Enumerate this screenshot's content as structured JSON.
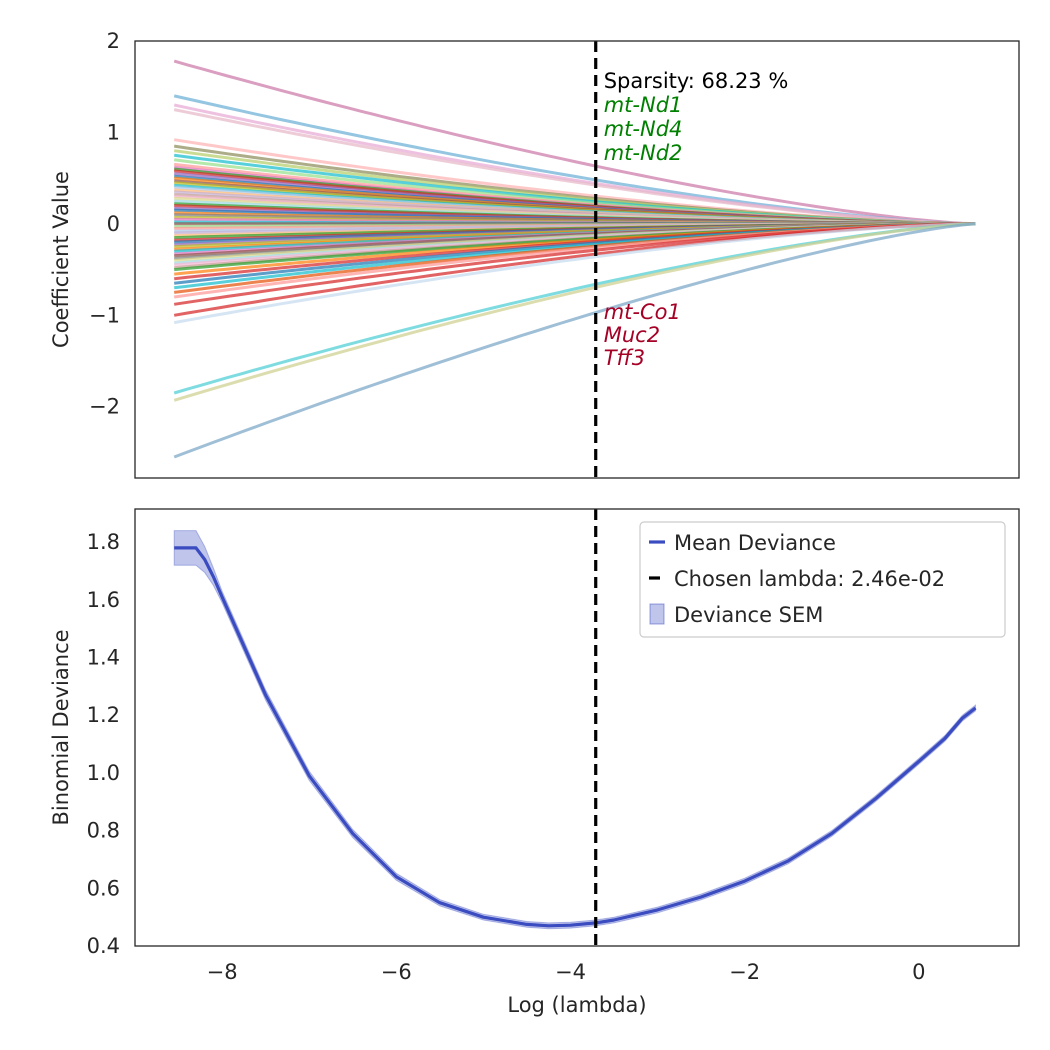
{
  "chart_data": [
    {
      "type": "line",
      "panel": "coefficient-path",
      "xlim": [
        -9.0,
        1.15
      ],
      "ylim": [
        -2.78,
        2.0
      ],
      "ylabel": "Coefficient Value",
      "yticks": [
        {
          "value": 2,
          "label": "2"
        },
        {
          "value": 1,
          "label": "1"
        },
        {
          "value": 0,
          "label": "0"
        },
        {
          "value": -1,
          "label": "−1"
        },
        {
          "value": -2,
          "label": "−2"
        }
      ],
      "grid": false,
      "chosen_log_lambda": -3.71,
      "sparsity_text": "Sparsity: 68.23 %",
      "positive_genes": {
        "color": "#008000",
        "labels": [
          "mt-Nd1",
          "mt-Nd4",
          "mt-Nd2"
        ]
      },
      "negative_genes": {
        "color": "#a50026",
        "labels": [
          "mt-Co1",
          "Muc2",
          "Tff3"
        ]
      },
      "path_x_range": [
        -8.55,
        0.65
      ],
      "series": [
        {
          "start": 1.78,
          "color": "#cc79a7"
        },
        {
          "start": 1.4,
          "color": "#6baed6"
        },
        {
          "start": 1.3,
          "color": "#e7a9d6"
        },
        {
          "start": 1.25,
          "color": "#e6b8c8"
        },
        {
          "start": 0.92,
          "color": "#ffb3b3"
        },
        {
          "start": 0.85,
          "color": "#8c8c5a"
        },
        {
          "start": 0.8,
          "color": "#b5cf6b"
        },
        {
          "start": 0.75,
          "color": "#17becf"
        },
        {
          "start": 0.7,
          "color": "#98df8a"
        },
        {
          "start": 0.65,
          "color": "#ff9896"
        },
        {
          "start": 0.62,
          "color": "#e377c2"
        },
        {
          "start": 0.6,
          "color": "#2ca02c"
        },
        {
          "start": 0.58,
          "color": "#d62728"
        },
        {
          "start": 0.55,
          "color": "#9467bd"
        },
        {
          "start": 0.52,
          "color": "#1f77b4"
        },
        {
          "start": 0.5,
          "color": "#ff7f0e"
        },
        {
          "start": 0.47,
          "color": "#8c564b"
        },
        {
          "start": 0.45,
          "color": "#bcbd22"
        },
        {
          "start": 0.42,
          "color": "#17becf"
        },
        {
          "start": 0.4,
          "color": "#aec7e8"
        },
        {
          "start": 0.37,
          "color": "#ffbb78"
        },
        {
          "start": 0.35,
          "color": "#c5b0d5"
        },
        {
          "start": 0.32,
          "color": "#c49c94"
        },
        {
          "start": 0.3,
          "color": "#f7b6d2"
        },
        {
          "start": 0.28,
          "color": "#dbdb8d"
        },
        {
          "start": 0.25,
          "color": "#9edae5"
        },
        {
          "start": 0.22,
          "color": "#2ca02c"
        },
        {
          "start": 0.2,
          "color": "#d62728"
        },
        {
          "start": 0.17,
          "color": "#9467bd"
        },
        {
          "start": 0.15,
          "color": "#1f77b4"
        },
        {
          "start": 0.12,
          "color": "#ff7f0e"
        },
        {
          "start": 0.1,
          "color": "#7f7f7f"
        },
        {
          "start": 0.07,
          "color": "#bcbd22"
        },
        {
          "start": 0.05,
          "color": "#e377c2"
        },
        {
          "start": 0.02,
          "color": "#17becf"
        },
        {
          "start": 0.0,
          "color": "#8c564b"
        },
        {
          "start": -0.03,
          "color": "#98df8a"
        },
        {
          "start": -0.05,
          "color": "#ff9896"
        },
        {
          "start": -0.08,
          "color": "#aec7e8"
        },
        {
          "start": -0.1,
          "color": "#c5b0d5"
        },
        {
          "start": -0.13,
          "color": "#ffbb78"
        },
        {
          "start": -0.15,
          "color": "#2ca02c"
        },
        {
          "start": -0.18,
          "color": "#d62728"
        },
        {
          "start": -0.2,
          "color": "#1f77b4"
        },
        {
          "start": -0.23,
          "color": "#9467bd"
        },
        {
          "start": -0.25,
          "color": "#bcbd22"
        },
        {
          "start": -0.28,
          "color": "#ff7f0e"
        },
        {
          "start": -0.3,
          "color": "#17becf"
        },
        {
          "start": -0.33,
          "color": "#e377c2"
        },
        {
          "start": -0.35,
          "color": "#8c564b"
        },
        {
          "start": -0.38,
          "color": "#7f7f7f"
        },
        {
          "start": -0.4,
          "color": "#dbdb8d"
        },
        {
          "start": -0.43,
          "color": "#9edae5"
        },
        {
          "start": -0.45,
          "color": "#f7b6d2"
        },
        {
          "start": -0.48,
          "color": "#c49c94"
        },
        {
          "start": -0.5,
          "color": "#2ca02c"
        },
        {
          "start": -0.55,
          "color": "#ff7f0e"
        },
        {
          "start": -0.6,
          "color": "#d62728"
        },
        {
          "start": -0.65,
          "color": "#1f77b4"
        },
        {
          "start": -0.7,
          "color": "#17becf"
        },
        {
          "start": -0.75,
          "color": "#e6550d"
        },
        {
          "start": -0.8,
          "color": "#ff9896"
        },
        {
          "start": -0.88,
          "color": "#d62728"
        },
        {
          "start": -1.0,
          "color": "#d62728"
        },
        {
          "start": -1.08,
          "color": "#c6dbef"
        },
        {
          "start": -1.85,
          "color": "#4ccfd6"
        },
        {
          "start": -1.93,
          "color": "#cfd08f"
        },
        {
          "start": -2.55,
          "color": "#7aa6c8"
        }
      ]
    },
    {
      "type": "line",
      "panel": "deviance",
      "xlim": [
        -9.0,
        1.15
      ],
      "ylim": [
        0.4,
        1.915
      ],
      "xlabel": "Log (lambda)",
      "ylabel": "Binomial Deviance",
      "xticks": [
        {
          "value": -8,
          "label": "−8"
        },
        {
          "value": -6,
          "label": "−6"
        },
        {
          "value": -4,
          "label": "−4"
        },
        {
          "value": -2,
          "label": "−2"
        },
        {
          "value": 0,
          "label": "0"
        }
      ],
      "yticks": [
        {
          "value": 1.8,
          "label": "1.8"
        },
        {
          "value": 1.6,
          "label": "1.6"
        },
        {
          "value": 1.4,
          "label": "1.4"
        },
        {
          "value": 1.2,
          "label": "1.2"
        },
        {
          "value": 1.0,
          "label": "1.0"
        },
        {
          "value": 0.8,
          "label": "0.8"
        },
        {
          "value": 0.6,
          "label": "0.6"
        },
        {
          "value": 0.4,
          "label": "0.4"
        }
      ],
      "grid": false,
      "chosen_log_lambda": -3.71,
      "legend_position": "top-right",
      "legend": [
        "Mean Deviance",
        "Chosen lambda: 2.46e-02",
        "Deviance SEM"
      ],
      "line_color": "#3a4cc0",
      "x": [
        -8.55,
        -8.3,
        -8.2,
        -8.1,
        -8.0,
        -7.5,
        -7.0,
        -6.5,
        -6.0,
        -5.5,
        -5.0,
        -4.5,
        -4.25,
        -4.0,
        -3.71,
        -3.5,
        -3.0,
        -2.5,
        -2.0,
        -1.5,
        -1.0,
        -0.5,
        0.0,
        0.3,
        0.5,
        0.65
      ],
      "y": [
        1.78,
        1.78,
        1.74,
        1.68,
        1.61,
        1.27,
        0.99,
        0.79,
        0.64,
        0.55,
        0.5,
        0.475,
        0.47,
        0.472,
        0.48,
        0.49,
        0.525,
        0.57,
        0.625,
        0.695,
        0.79,
        0.91,
        1.04,
        1.12,
        1.19,
        1.225
      ],
      "sem": [
        0.06,
        0.06,
        0.045,
        0.03,
        0.02,
        0.018,
        0.016,
        0.014,
        0.012,
        0.011,
        0.01,
        0.01,
        0.01,
        0.01,
        0.01,
        0.01,
        0.01,
        0.01,
        0.01,
        0.01,
        0.01,
        0.01,
        0.01,
        0.01,
        0.01,
        0.01
      ]
    }
  ]
}
